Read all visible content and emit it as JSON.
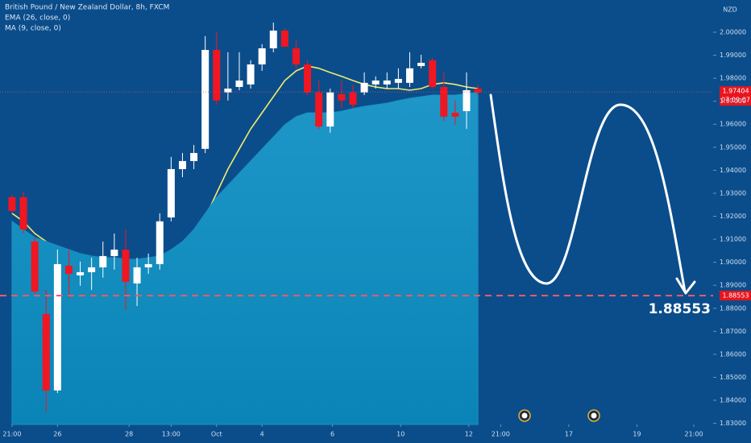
{
  "chart_data": {
    "type": "candlestick",
    "title": "British Pound / New Zealand Dollar, 8h, FXCM",
    "indicators": [
      "EMA (26, close, 0)",
      "MA (9, close, 0)"
    ],
    "currency": "NZD",
    "x": [
      0,
      1,
      2,
      3,
      4,
      5,
      6,
      7,
      8,
      9,
      10,
      11,
      12,
      13,
      14,
      15,
      16,
      17,
      18,
      19,
      20,
      21,
      22,
      23,
      24,
      25,
      26,
      27,
      28,
      29,
      30,
      31,
      32,
      33,
      34,
      35,
      36,
      37,
      38,
      39,
      40,
      41
    ],
    "open": [
      1.9283,
      1.9283,
      1.909,
      1.8775,
      1.8443,
      1.8985,
      1.8943,
      1.8957,
      1.8978,
      1.9027,
      1.9055,
      1.8908,
      1.8978,
      1.8992,
      1.9195,
      1.9405,
      1.944,
      1.9493,
      1.9923,
      1.9738,
      1.9762,
      1.9773,
      1.986,
      1.993,
      2.0007,
      1.993,
      1.986,
      1.9738,
      1.959,
      1.9731,
      1.9738,
      1.9738,
      1.9773,
      1.9773,
      1.978,
      1.978,
      1.9853,
      1.9878,
      1.9762,
      1.965,
      1.9657,
      1.9755
    ],
    "high": [
      1.9293,
      1.9307,
      1.9108,
      1.888,
      1.9055,
      1.9055,
      1.9003,
      1.902,
      1.909,
      1.9125,
      1.9143,
      1.902,
      1.9038,
      1.9213,
      1.9458,
      1.9475,
      1.951,
      1.9983,
      2.0,
      1.9913,
      1.9913,
      1.9878,
      1.9948,
      2.0042,
      2.0018,
      1.9965,
      1.9878,
      1.979,
      1.9755,
      1.979,
      1.9773,
      1.9825,
      1.9808,
      1.9825,
      1.9843,
      1.9913,
      1.9902,
      1.9888,
      1.9825,
      1.9703,
      1.9825,
      1.9773
    ],
    "low": [
      1.9213,
      1.9125,
      1.8863,
      1.8348,
      1.8432,
      1.8845,
      1.8898,
      1.888,
      1.8933,
      1.8968,
      1.8793,
      1.881,
      1.895,
      1.8968,
      1.9178,
      1.937,
      1.9405,
      1.9475,
      1.9685,
      1.9703,
      1.9748,
      1.9755,
      1.9832,
      1.9913,
      1.9937,
      1.9843,
      1.9727,
      1.958,
      1.9563,
      1.9668,
      1.9668,
      1.9727,
      1.9755,
      1.9755,
      1.9755,
      1.9762,
      1.9843,
      1.9755,
      1.9615,
      1.9598,
      1.958,
      1.9727
    ],
    "close": [
      1.9223,
      1.9143,
      1.8873,
      1.8443,
      1.8992,
      1.895,
      1.8957,
      1.8978,
      1.9027,
      1.9055,
      1.8915,
      1.8978,
      1.8992,
      1.9178,
      1.9405,
      1.944,
      1.9475,
      1.9923,
      1.9703,
      1.9755,
      1.979,
      1.986,
      1.993,
      2.0007,
      1.9937,
      1.986,
      1.9738,
      1.959,
      1.9738,
      1.9703,
      1.9685,
      1.978,
      1.979,
      1.979,
      1.9797,
      1.9843,
      1.9867,
      1.9762,
      1.9633,
      1.9633,
      1.9748,
      1.9738
    ],
    "up_color": "#ffffff",
    "down_color": "#f01622",
    "series": [
      {
        "name": "EMA (26, close, 0)",
        "color": "#f2ec6a",
        "kind": "line",
        "values": [
          1.9213,
          1.9178,
          1.9125,
          1.909,
          1.9038,
          1.9013,
          1.8985,
          1.8961,
          1.8943,
          1.8933,
          1.8922,
          1.8915,
          1.8933,
          1.8968,
          1.902,
          1.9073,
          1.9125,
          1.9195,
          1.93,
          1.9405,
          1.9493,
          1.958,
          1.965,
          1.972,
          1.979,
          1.9832,
          1.9853,
          1.9843,
          1.9825,
          1.9808,
          1.979,
          1.9773,
          1.9762,
          1.9755,
          1.9755,
          1.9748,
          1.9755,
          1.9773,
          1.978,
          1.9773,
          1.9762,
          1.9755
        ]
      },
      {
        "name": "MA (9, close, 0)",
        "color": "#1a8fc2",
        "kind": "area",
        "values": [
          1.9178,
          1.9143,
          1.9108,
          1.909,
          1.9073,
          1.9055,
          1.9038,
          1.9027,
          1.902,
          1.902,
          1.9013,
          1.9013,
          1.902,
          1.9027,
          1.9055,
          1.909,
          1.9143,
          1.9213,
          1.9283,
          1.9335,
          1.9388,
          1.944,
          1.9493,
          1.9545,
          1.9598,
          1.9633,
          1.965,
          1.965,
          1.965,
          1.9657,
          1.9668,
          1.9678,
          1.9685,
          1.9692,
          1.9703,
          1.9713,
          1.972,
          1.9727,
          1.9727,
          1.9727,
          1.9734,
          1.9738
        ]
      }
    ],
    "current_price": {
      "value": 1.97404,
      "label": "1.97404",
      "countdown": "07:09:07"
    },
    "target": {
      "value": 1.88553,
      "label": "1.88553"
    },
    "xlim": [
      -1.06,
      61.7
    ],
    "ylim": [
      1.8295,
      2.014
    ],
    "xticks": [
      {
        "value": 0,
        "label": "21:00"
      },
      {
        "value": 4,
        "label": "26"
      },
      {
        "value": 10.3,
        "label": "28"
      },
      {
        "value": 14,
        "label": "13:00"
      },
      {
        "value": 18,
        "label": "Oct"
      },
      {
        "value": 22,
        "label": "4"
      },
      {
        "value": 28.2,
        "label": "6"
      },
      {
        "value": 34.2,
        "label": "10"
      },
      {
        "value": 40.2,
        "label": "12"
      },
      {
        "value": 43,
        "label": "21:00"
      },
      {
        "value": 49,
        "label": "17"
      },
      {
        "value": 55,
        "label": "19"
      },
      {
        "value": 60,
        "label": "21:00"
      }
    ],
    "yticks": [
      {
        "value": 1.83,
        "label": "1.83000"
      },
      {
        "value": 1.84,
        "label": "1.84000"
      },
      {
        "value": 1.85,
        "label": "1.85000"
      },
      {
        "value": 1.86,
        "label": "1.86000"
      },
      {
        "value": 1.87,
        "label": "1.87000"
      },
      {
        "value": 1.88,
        "label": "1.88000"
      },
      {
        "value": 1.89,
        "label": "1.89000"
      },
      {
        "value": 1.9,
        "label": "1.90000"
      },
      {
        "value": 1.91,
        "label": "1.91000"
      },
      {
        "value": 1.92,
        "label": "1.92000"
      },
      {
        "value": 1.93,
        "label": "1.93000"
      },
      {
        "value": 1.94,
        "label": "1.94000"
      },
      {
        "value": 1.95,
        "label": "1.95000"
      },
      {
        "value": 1.96,
        "label": "1.96000"
      },
      {
        "value": 1.97,
        "label": "1.97000"
      },
      {
        "value": 1.98,
        "label": "1.98000"
      },
      {
        "value": 1.99,
        "label": "1.99000"
      },
      {
        "value": 2.0,
        "label": "2.00000"
      }
    ]
  }
}
